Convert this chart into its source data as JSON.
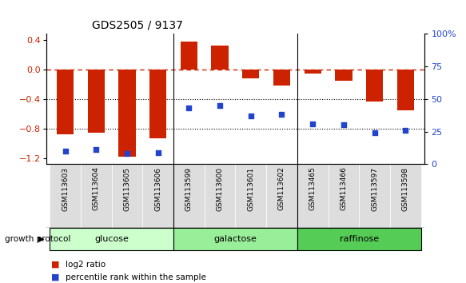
{
  "title": "GDS2505 / 9137",
  "samples": [
    "GSM113603",
    "GSM113604",
    "GSM113605",
    "GSM113606",
    "GSM113599",
    "GSM113600",
    "GSM113601",
    "GSM113602",
    "GSM113465",
    "GSM113466",
    "GSM113597",
    "GSM113598"
  ],
  "log2_ratio": [
    -0.88,
    -0.85,
    -1.18,
    -0.93,
    0.38,
    0.32,
    -0.12,
    -0.22,
    -0.06,
    -0.15,
    -0.43,
    -0.55
  ],
  "percentile_rank": [
    10,
    11,
    8,
    9,
    43,
    45,
    37,
    38,
    31,
    30,
    24,
    26
  ],
  "groups": [
    {
      "name": "glucose",
      "start": 0,
      "end": 4,
      "color": "#ccffcc"
    },
    {
      "name": "galactose",
      "start": 4,
      "end": 8,
      "color": "#99ee99"
    },
    {
      "name": "raffinose",
      "start": 8,
      "end": 12,
      "color": "#55cc55"
    }
  ],
  "ylim_left": [
    -1.28,
    0.48
  ],
  "ylim_right": [
    0,
    100
  ],
  "yticks_left": [
    -1.2,
    -0.8,
    -0.4,
    0.0,
    0.4
  ],
  "yticks_right": [
    0,
    25,
    50,
    75,
    100
  ],
  "ytick_labels_right": [
    "0",
    "25",
    "50",
    "75",
    "100%"
  ],
  "bar_color": "#cc2200",
  "dot_color": "#2244cc",
  "hline_color": "#cc2200",
  "bg_color": "#ffffff",
  "tick_label_gray": "#cccccc",
  "sep_color": "#000000"
}
